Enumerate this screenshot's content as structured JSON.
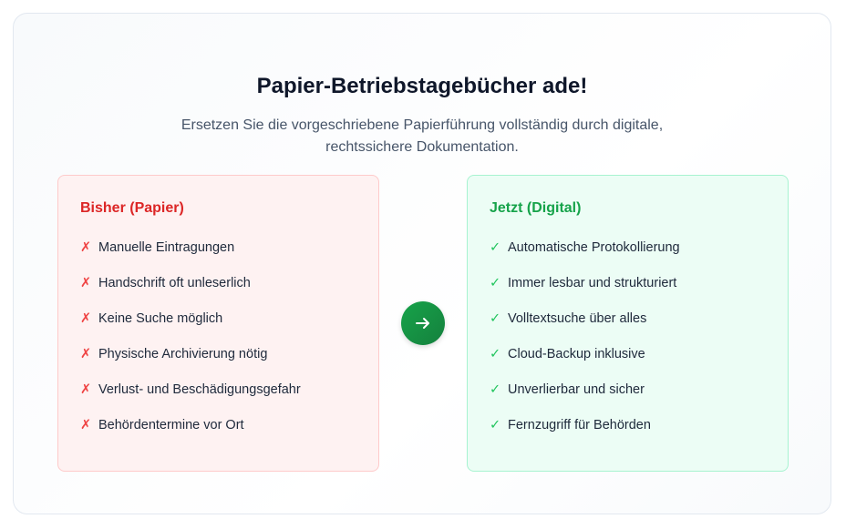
{
  "header": {
    "title": "Papier-Betriebstagebücher ade!",
    "subtitle": "Ersetzen Sie die vorgeschriebene Papierführung vollständig durch digitale, rechtssichere Dokumentation."
  },
  "before": {
    "title": "Bisher (Papier)",
    "icon": "cross-icon",
    "mark": "✗",
    "items": [
      "Manuelle Eintragungen",
      "Handschrift oft unleserlich",
      "Keine Suche möglich",
      "Physische Archivierung nötig",
      "Verlust- und Beschädigungsgefahr",
      "Behördentermine vor Ort"
    ]
  },
  "after": {
    "title": "Jetzt (Digital)",
    "icon": "check-icon",
    "mark": "✓",
    "items": [
      "Automatische Protokollierung",
      "Immer lesbar und strukturiert",
      "Volltextsuche über alles",
      "Cloud-Backup inklusive",
      "Unverlierbar und sicher",
      "Fernzugriff für Behörden"
    ]
  },
  "colors": {
    "red": "#dc2626",
    "green": "#16a34a",
    "arrow": "#16a34a"
  }
}
